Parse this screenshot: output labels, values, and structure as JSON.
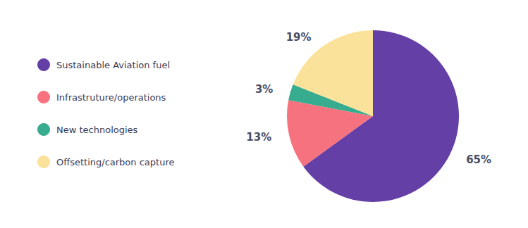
{
  "chart_data": {
    "type": "pie",
    "categories": [
      "Sustainable Aviation fuel",
      "Infrastruture/operations",
      "New technologies",
      "Offsetting/carbon capture"
    ],
    "values": [
      65,
      13,
      3,
      19
    ],
    "value_labels": [
      "65%",
      "13%",
      "3%",
      "19%"
    ],
    "colors": [
      "#643fa6",
      "#f7727f",
      "#38ac8e",
      "#fbe29a"
    ],
    "data_labels": true,
    "legend": "left"
  }
}
